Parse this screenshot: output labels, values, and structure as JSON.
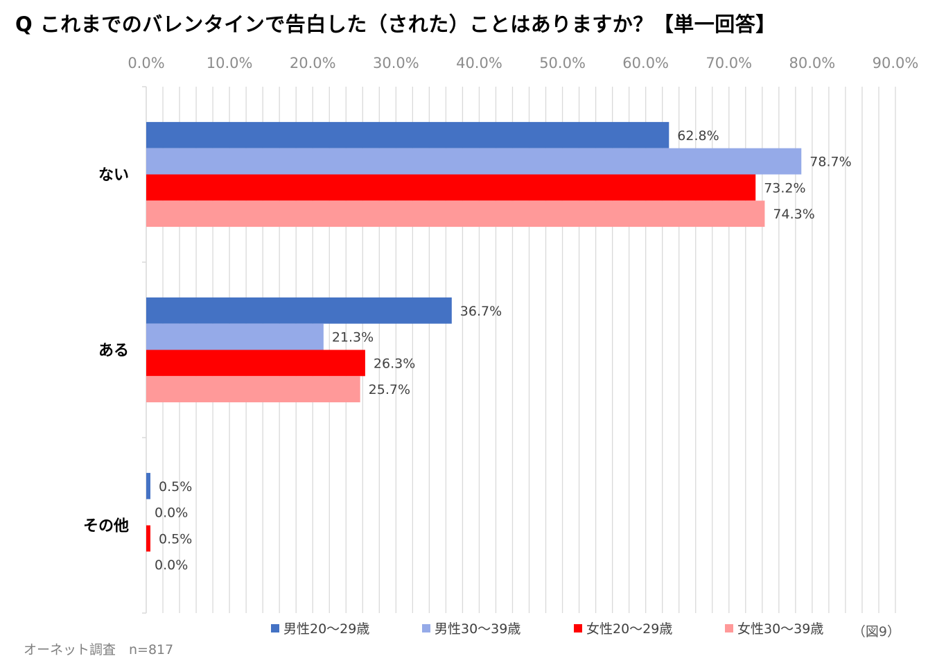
{
  "title": "Q これまでのバレンタインで告白した（された）ことはありますか？【単一回答】",
  "source_note": "オーネット調査　n=817",
  "figure_label": "（図9）",
  "chart_data": {
    "type": "bar",
    "orientation": "horizontal",
    "title": "Q これまでのバレンタインで告白した（された）ことはありますか？【単一回答】",
    "categories": [
      "ない",
      "ある",
      "その他"
    ],
    "series": [
      {
        "name": "男性20～29歳",
        "color": "#4472C4",
        "values": [
          62.8,
          36.7,
          0.5
        ]
      },
      {
        "name": "男性30～39歳",
        "color": "#95AAE8",
        "values": [
          78.7,
          21.3,
          0.0
        ]
      },
      {
        "name": "女性20～29歳",
        "color": "#FF0000",
        "values": [
          73.2,
          26.3,
          0.5
        ]
      },
      {
        "name": "女性30～39歳",
        "color": "#FF9999",
        "values": [
          74.3,
          25.7,
          0.0
        ]
      }
    ],
    "value_labels": [
      [
        "62.8%",
        "36.7%",
        "0.5%"
      ],
      [
        "78.7%",
        "21.3%",
        "0.0%"
      ],
      [
        "73.2%",
        "26.3%",
        "0.5%"
      ],
      [
        "74.3%",
        "25.7%",
        "0.0%"
      ]
    ],
    "xlim": [
      0,
      90
    ],
    "xticks": [
      "0.0%",
      "10.0%",
      "20.0%",
      "30.0%",
      "40.0%",
      "50.0%",
      "60.0%",
      "70.0%",
      "80.0%",
      "90.0%"
    ],
    "xlabel": "",
    "ylabel": "",
    "grid": true,
    "legend_position": "bottom"
  }
}
